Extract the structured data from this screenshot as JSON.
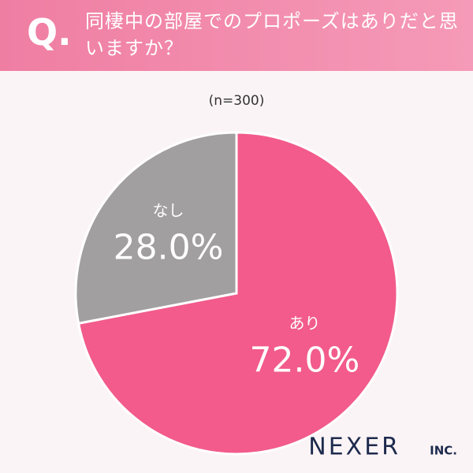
{
  "chart_data": {
    "type": "pie",
    "question_label": "Q.",
    "title": "同棲中の部屋でのプロポーズはありだと思いますか？",
    "subtitle": "(n=300)",
    "categories": [
      "あり",
      "なし"
    ],
    "values": [
      72.0,
      28.0
    ],
    "value_labels": [
      "72.0%",
      "28.0%"
    ],
    "colors": [
      "#f25b8b",
      "#a19fa0"
    ],
    "brand": "NEXER",
    "brand_suffix": "INC."
  }
}
